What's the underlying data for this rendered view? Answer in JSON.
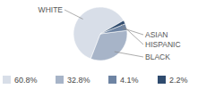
{
  "chart_data": {
    "type": "pie",
    "categories": [
      "WHITE",
      "BLACK",
      "ASIAN",
      "HISPANIC"
    ],
    "values": [
      60.8,
      32.8,
      4.1,
      2.2
    ],
    "value_labels": [
      "60.8%",
      "32.8%",
      "4.1%",
      "2.2%"
    ],
    "colors": [
      "#d8dee8",
      "#a7b4c8",
      "#6e84a3",
      "#2f4b6e"
    ]
  }
}
